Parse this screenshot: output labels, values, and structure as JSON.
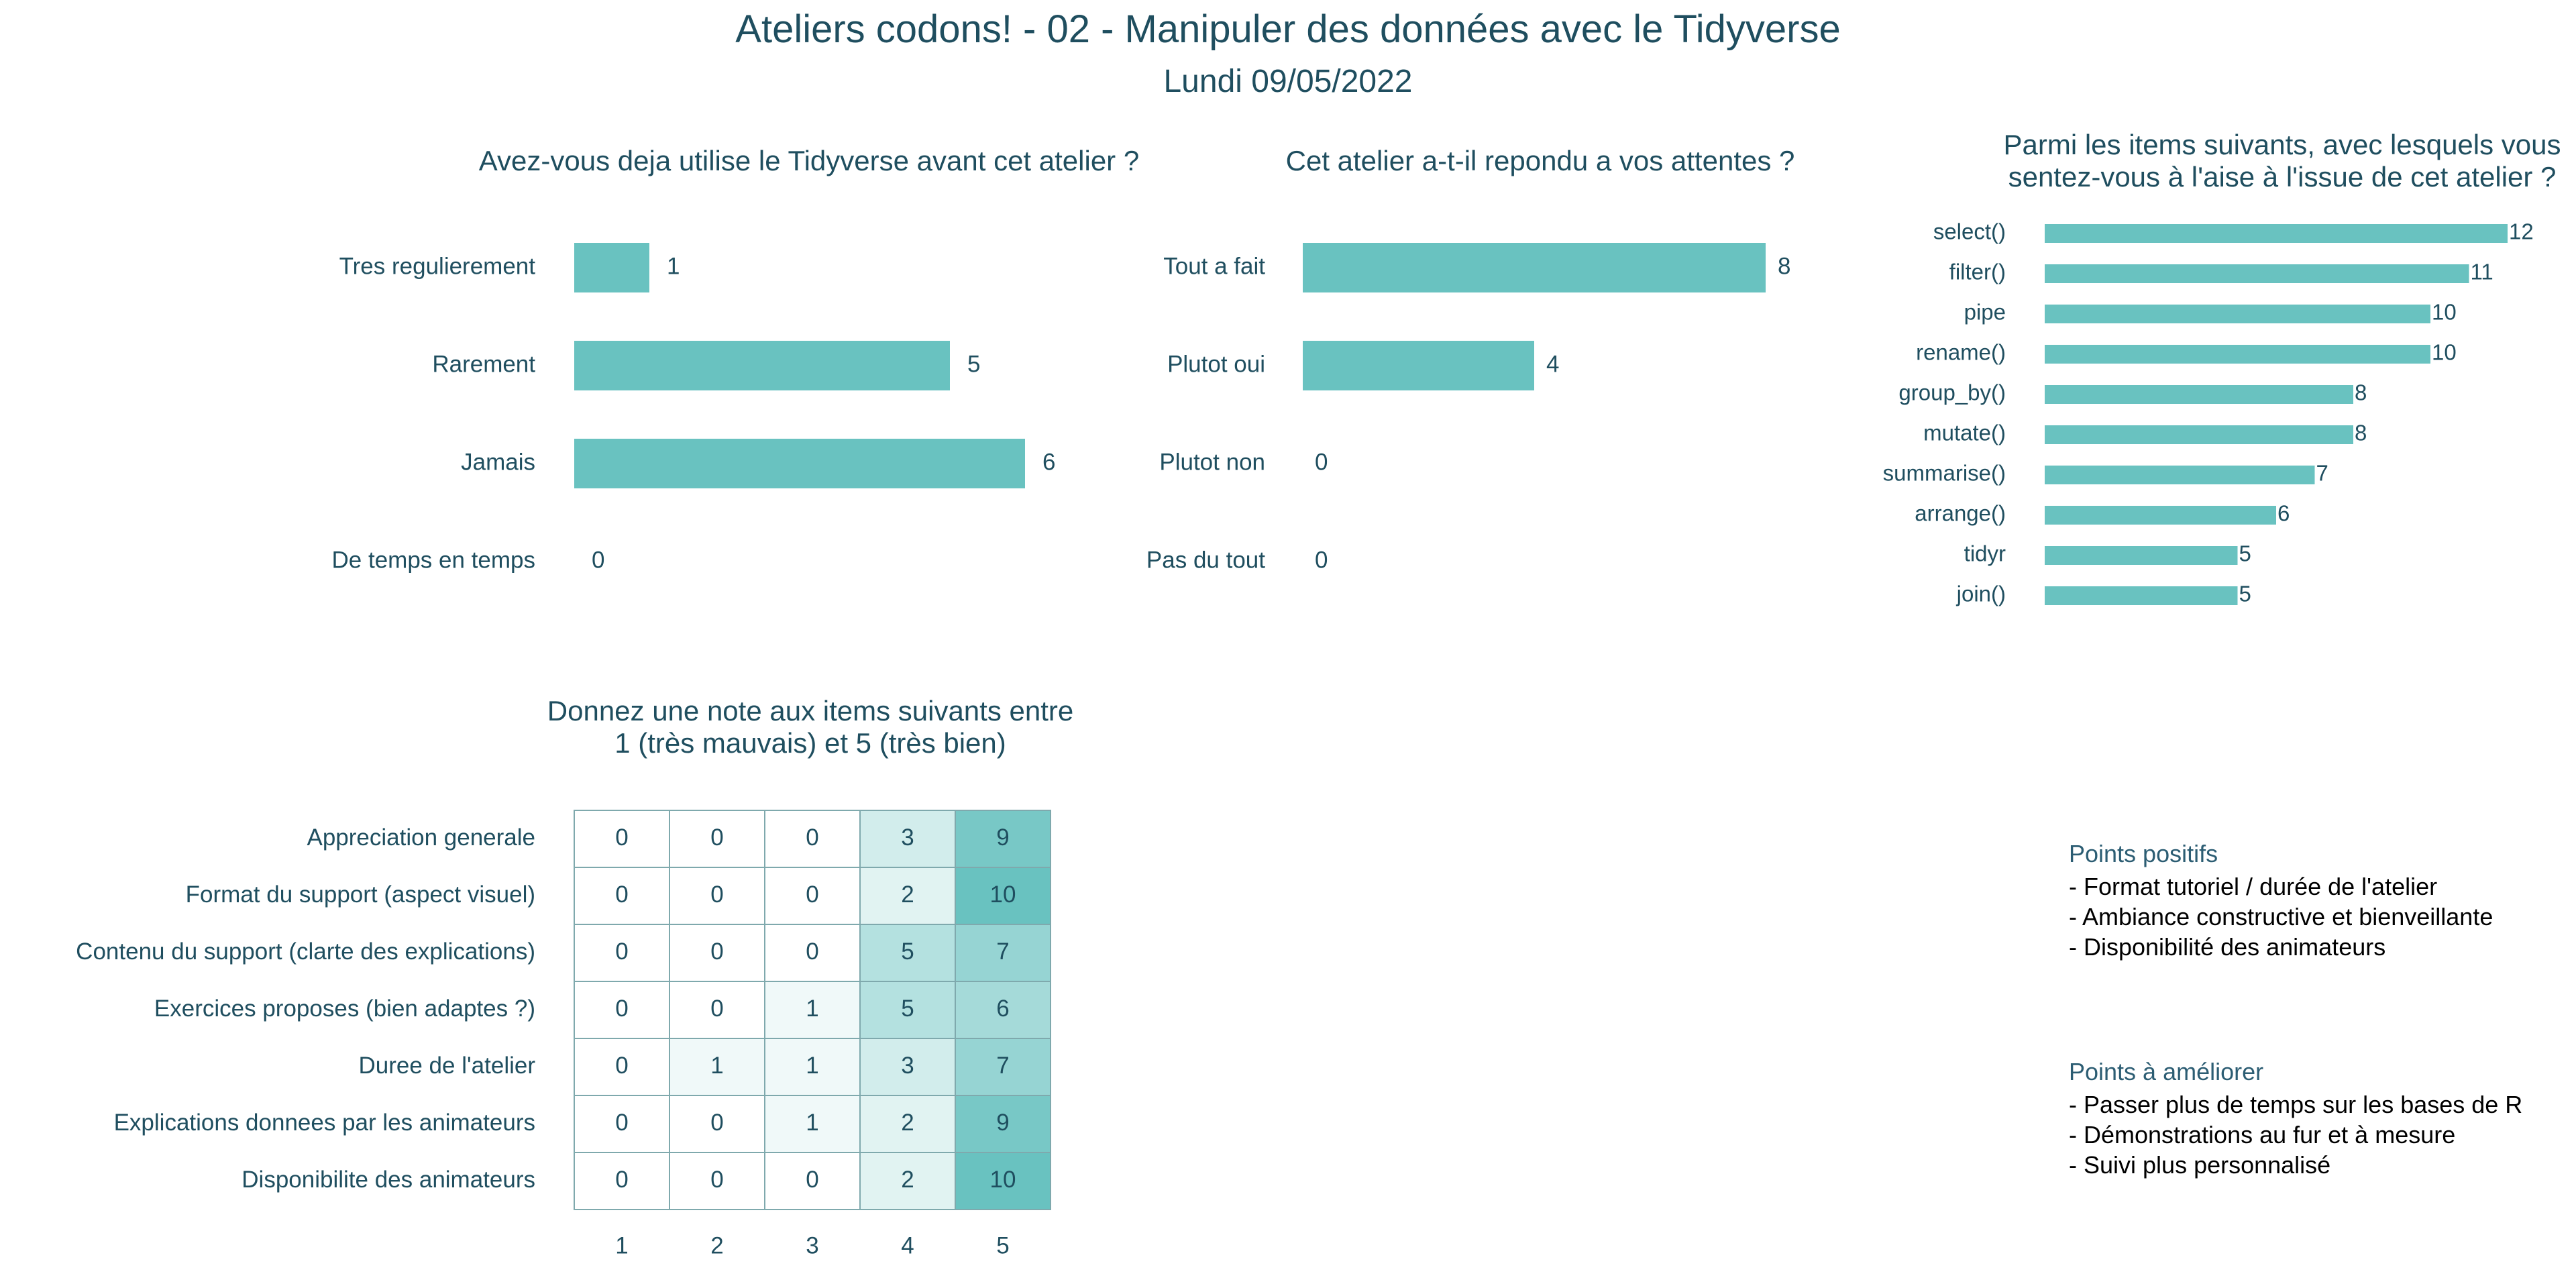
{
  "header": {
    "title": "Ateliers codons! - 02 - Manipuler des données avec le Tidyverse",
    "subtitle": "Lundi 09/05/2022"
  },
  "colors": {
    "bar": "#69c2c0",
    "text": "#1f4e5f",
    "grid": "#7fa9ad"
  },
  "chart_data": [
    {
      "type": "bar",
      "orientation": "horizontal",
      "title": "Avez-vous deja utilise le Tidyverse avant cet atelier ?",
      "categories": [
        "Tres regulierement",
        "Rarement",
        "Jamais",
        "De temps en temps"
      ],
      "values": [
        1,
        5,
        6,
        0
      ],
      "xlim": [
        0,
        6
      ]
    },
    {
      "type": "bar",
      "orientation": "horizontal",
      "title": "Cet atelier a-t-il repondu a vos attentes ?",
      "categories": [
        "Tout a fait",
        "Plutot oui",
        "Plutot non",
        "Pas du tout"
      ],
      "values": [
        8,
        4,
        0,
        0
      ],
      "xlim": [
        0,
        8
      ]
    },
    {
      "type": "bar",
      "orientation": "horizontal",
      "title_lines": [
        "Parmi les items suivants, avec lesquels vous",
        "sentez-vous à l'aise à l'issue de cet atelier ?"
      ],
      "categories": [
        "select()",
        "filter()",
        "pipe",
        "rename()",
        "group_by()",
        "mutate()",
        "summarise()",
        "arrange()",
        "tidyr",
        "join()"
      ],
      "values": [
        12,
        11,
        10,
        10,
        8,
        8,
        7,
        6,
        5,
        5
      ],
      "xlim": [
        0,
        12
      ]
    },
    {
      "type": "heatmap",
      "title_lines": [
        "Donnez une note aux items suivants entre",
        "1 (très mauvais) et 5 (très bien)"
      ],
      "rows": [
        "Appreciation generale",
        "Format du support (aspect visuel)",
        "Contenu du support (clarte des explications)",
        "Exercices proposes (bien adaptes ?)",
        "Duree de l'atelier",
        "Explications donnees par les animateurs",
        "Disponibilite des animateurs"
      ],
      "columns": [
        "1",
        "2",
        "3",
        "4",
        "5"
      ],
      "values": [
        [
          0,
          0,
          0,
          3,
          9
        ],
        [
          0,
          0,
          0,
          2,
          10
        ],
        [
          0,
          0,
          0,
          5,
          7
        ],
        [
          0,
          0,
          1,
          5,
          6
        ],
        [
          0,
          1,
          1,
          3,
          7
        ],
        [
          0,
          0,
          1,
          2,
          9
        ],
        [
          0,
          0,
          0,
          2,
          10
        ]
      ]
    }
  ],
  "notes": {
    "positive": {
      "title": "Points positifs",
      "items": [
        "- Format tutoriel / durée de l'atelier",
        "- Ambiance constructive et bienveillante",
        "- Disponibilité des animateurs"
      ]
    },
    "improve": {
      "title": "Points à améliorer",
      "items": [
        "- Passer plus de temps sur les bases de R",
        "- Démonstrations au fur et à mesure",
        "- Suivi plus personnalisé"
      ]
    }
  }
}
